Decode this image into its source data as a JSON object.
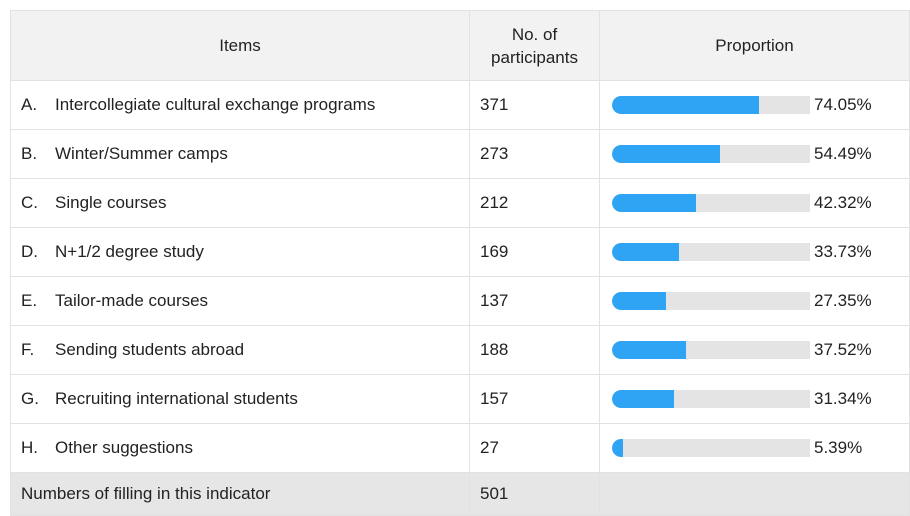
{
  "table": {
    "headers": [
      "Items",
      "No. of participants",
      "Proportion"
    ],
    "rows": [
      {
        "letter": "A.",
        "item": "Intercollegiate cultural exchange programs",
        "participants": 371,
        "proportion": {
          "value": 74.05,
          "label": "74.05%"
        }
      },
      {
        "letter": "B.",
        "item": "Winter/Summer camps",
        "participants": 273,
        "proportion": {
          "value": 54.49,
          "label": "54.49%"
        }
      },
      {
        "letter": "C.",
        "item": "Single courses",
        "participants": 212,
        "proportion": {
          "value": 42.32,
          "label": "42.32%"
        }
      },
      {
        "letter": "D.",
        "item": "N+1/2 degree study",
        "participants": 169,
        "proportion": {
          "value": 33.73,
          "label": "33.73%"
        }
      },
      {
        "letter": "E.",
        "item": "Tailor-made courses",
        "participants": 137,
        "proportion": {
          "value": 27.35,
          "label": "27.35%"
        }
      },
      {
        "letter": "F.",
        "item": "Sending students abroad",
        "participants": 188,
        "proportion": {
          "value": 37.52,
          "label": "37.52%"
        }
      },
      {
        "letter": "G.",
        "item": "Recruiting international students",
        "participants": 157,
        "proportion": {
          "value": 31.34,
          "label": "31.34%"
        }
      },
      {
        "letter": "H.",
        "item": "Other suggestions",
        "participants": 27,
        "proportion": {
          "value": 5.39,
          "label": "5.39%"
        }
      }
    ],
    "footer": {
      "label": "Numbers of filling in this indicator",
      "participants": 501
    }
  }
}
